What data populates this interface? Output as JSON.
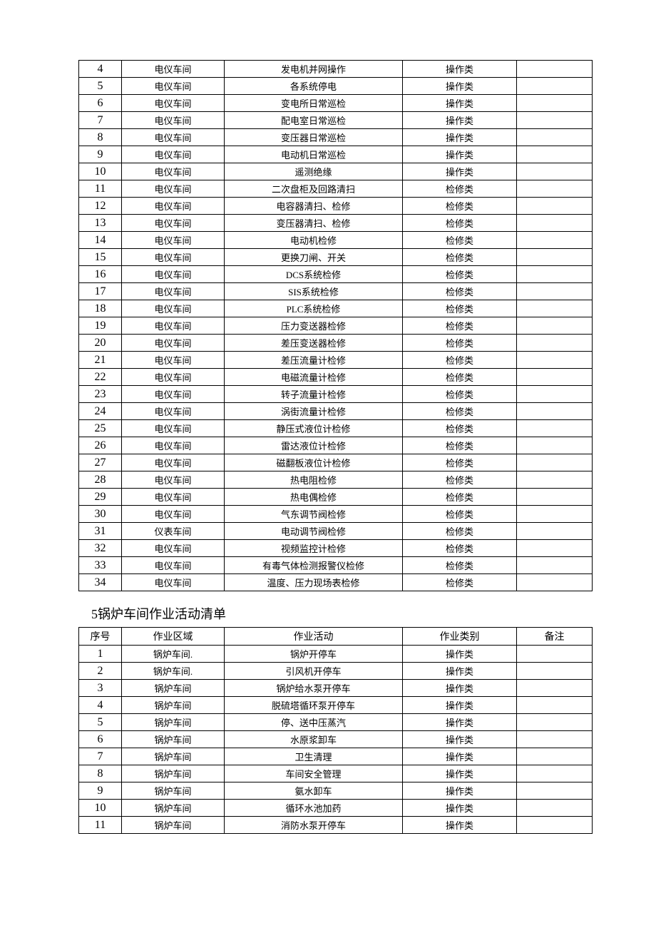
{
  "table1": {
    "columns_widths": [
      60,
      144,
      250,
      160,
      106
    ],
    "rows": [
      {
        "idx": "4",
        "area": "电仪车间",
        "activity": "发电机并网操作",
        "type": "操作类",
        "remark": ""
      },
      {
        "idx": "5",
        "area": "电仪车间",
        "activity": "各系统停电",
        "type": "操作类",
        "remark": ""
      },
      {
        "idx": "6",
        "area": "电仪车间",
        "activity": "变电所日常巡检",
        "type": "操作类",
        "remark": ""
      },
      {
        "idx": "7",
        "area": "电仪车间",
        "activity": "配电室日常巡检",
        "type": "操作类",
        "remark": ""
      },
      {
        "idx": "8",
        "area": "电仪车间",
        "activity": "变压器日常巡检",
        "type": "操作类",
        "remark": ""
      },
      {
        "idx": "9",
        "area": "电仪车间",
        "activity": "电动机日常巡检",
        "type": "操作类",
        "remark": ""
      },
      {
        "idx": "10",
        "area": "电仪车间",
        "activity": "遥测绝缘",
        "type": "操作类",
        "remark": ""
      },
      {
        "idx": "11",
        "area": "电仪车间",
        "activity": "二次盘柜及回路清扫",
        "type": "检修类",
        "remark": ""
      },
      {
        "idx": "12",
        "area": "电仪车间",
        "activity": "电容器清扫、检修",
        "type": "检修类",
        "remark": ""
      },
      {
        "idx": "13",
        "area": "电仪车间",
        "activity": "变压器清扫、检修",
        "type": "检修类",
        "remark": ""
      },
      {
        "idx": "14",
        "area": "电仪车间",
        "activity": "电动机检修",
        "type": "检修类",
        "remark": ""
      },
      {
        "idx": "15",
        "area": "电仪车间",
        "activity": "更换刀闸、开关",
        "type": "检修类",
        "remark": ""
      },
      {
        "idx": "16",
        "area": "电仪车间",
        "activity": "DCS系统检修",
        "type": "检修类",
        "remark": ""
      },
      {
        "idx": "17",
        "area": "电仪车间",
        "activity": "SIS系统检修",
        "type": "检修类",
        "remark": ""
      },
      {
        "idx": "18",
        "area": "电仪车间",
        "activity": "PLC系统检修",
        "type": "检修类",
        "remark": ""
      },
      {
        "idx": "19",
        "area": "电仪车间",
        "activity": "压力变送器检修",
        "type": "检修类",
        "remark": ""
      },
      {
        "idx": "20",
        "area": "电仪车间",
        "activity": "差压变送器检修",
        "type": "检修类",
        "remark": ""
      },
      {
        "idx": "21",
        "area": "电仪车间",
        "activity": "差压流量计检修",
        "type": "检修类",
        "remark": ""
      },
      {
        "idx": "22",
        "area": "电仪车间",
        "activity": "电磁流量计检修",
        "type": "检修类",
        "remark": ""
      },
      {
        "idx": "23",
        "area": "电仪车间",
        "activity": "转子流量计检修",
        "type": "检修类",
        "remark": ""
      },
      {
        "idx": "24",
        "area": "电仪车间",
        "activity": "涡街流量计检修",
        "type": "检修类",
        "remark": ""
      },
      {
        "idx": "25",
        "area": "电仪车间",
        "activity": "静压式液位计检修",
        "type": "检修类",
        "remark": ""
      },
      {
        "idx": "26",
        "area": "电仪车间",
        "activity": "雷达液位计检修",
        "type": "检修类",
        "remark": ""
      },
      {
        "idx": "27",
        "area": "电仪车间",
        "activity": "磁翻板液位计检修",
        "type": "检修类",
        "remark": ""
      },
      {
        "idx": "28",
        "area": "电仪车间",
        "activity": "热电阻检修",
        "type": "检修类",
        "remark": ""
      },
      {
        "idx": "29",
        "area": "电仪车间",
        "activity": "热电偶检修",
        "type": "检修类",
        "remark": ""
      },
      {
        "idx": "30",
        "area": "电仪车间",
        "activity": "气东调节阀检修",
        "type": "检修类",
        "remark": ""
      },
      {
        "idx": "31",
        "area": "仪表车间",
        "activity": "电动调节阀检修",
        "type": "检修类",
        "remark": ""
      },
      {
        "idx": "32",
        "area": "电仪车间",
        "activity": "视频监控计检修",
        "type": "检修类",
        "remark": ""
      },
      {
        "idx": "33",
        "area": "电仪车间",
        "activity": "有毒气体检测报警仪检修",
        "type": "检修类",
        "remark": ""
      },
      {
        "idx": "34",
        "area": "电仪车间",
        "activity": "温度、压力现场表检修",
        "type": "检修类",
        "remark": ""
      }
    ]
  },
  "section2_title": "5锅炉车间作业活动清单",
  "table2": {
    "headers": {
      "idx": "序号",
      "area": "作业区域",
      "activity": "作业活动",
      "type": "作业类别",
      "remark": "备注"
    },
    "rows": [
      {
        "idx": "1",
        "area": "锅炉车间.",
        "activity": "锅炉开停车",
        "type": "操作类",
        "remark": ""
      },
      {
        "idx": "2",
        "area": "锅炉车间.",
        "activity": "引风机开停车",
        "type": "操作类",
        "remark": ""
      },
      {
        "idx": "3",
        "area": "锅炉车间",
        "activity": "锅炉给水泵开停车",
        "type": "操作类",
        "remark": ""
      },
      {
        "idx": "4",
        "area": "锅炉车间",
        "activity": "脱硫塔循环泵开停车",
        "type": "操作类",
        "remark": ""
      },
      {
        "idx": "5",
        "area": "锅炉车间",
        "activity": "停、送中压蒸汽",
        "type": "操作类",
        "remark": ""
      },
      {
        "idx": "6",
        "area": "锅炉车间",
        "activity": "水原浆卸车",
        "type": "操作类",
        "remark": ""
      },
      {
        "idx": "7",
        "area": "锅炉车间",
        "activity": "卫生清理",
        "type": "操作类",
        "remark": ""
      },
      {
        "idx": "8",
        "area": "锅炉车间",
        "activity": "车间安全管理",
        "type": "操作类",
        "remark": ""
      },
      {
        "idx": "9",
        "area": "锅炉车间",
        "activity": "氨水卸车",
        "type": "操作类",
        "remark": ""
      },
      {
        "idx": "10",
        "area": "锅炉车间",
        "activity": "循环水池加药",
        "type": "操作类",
        "remark": ""
      },
      {
        "idx": "11",
        "area": "锅炉车间",
        "activity": "消防水泵开停车",
        "type": "操作类",
        "remark": ""
      }
    ]
  }
}
